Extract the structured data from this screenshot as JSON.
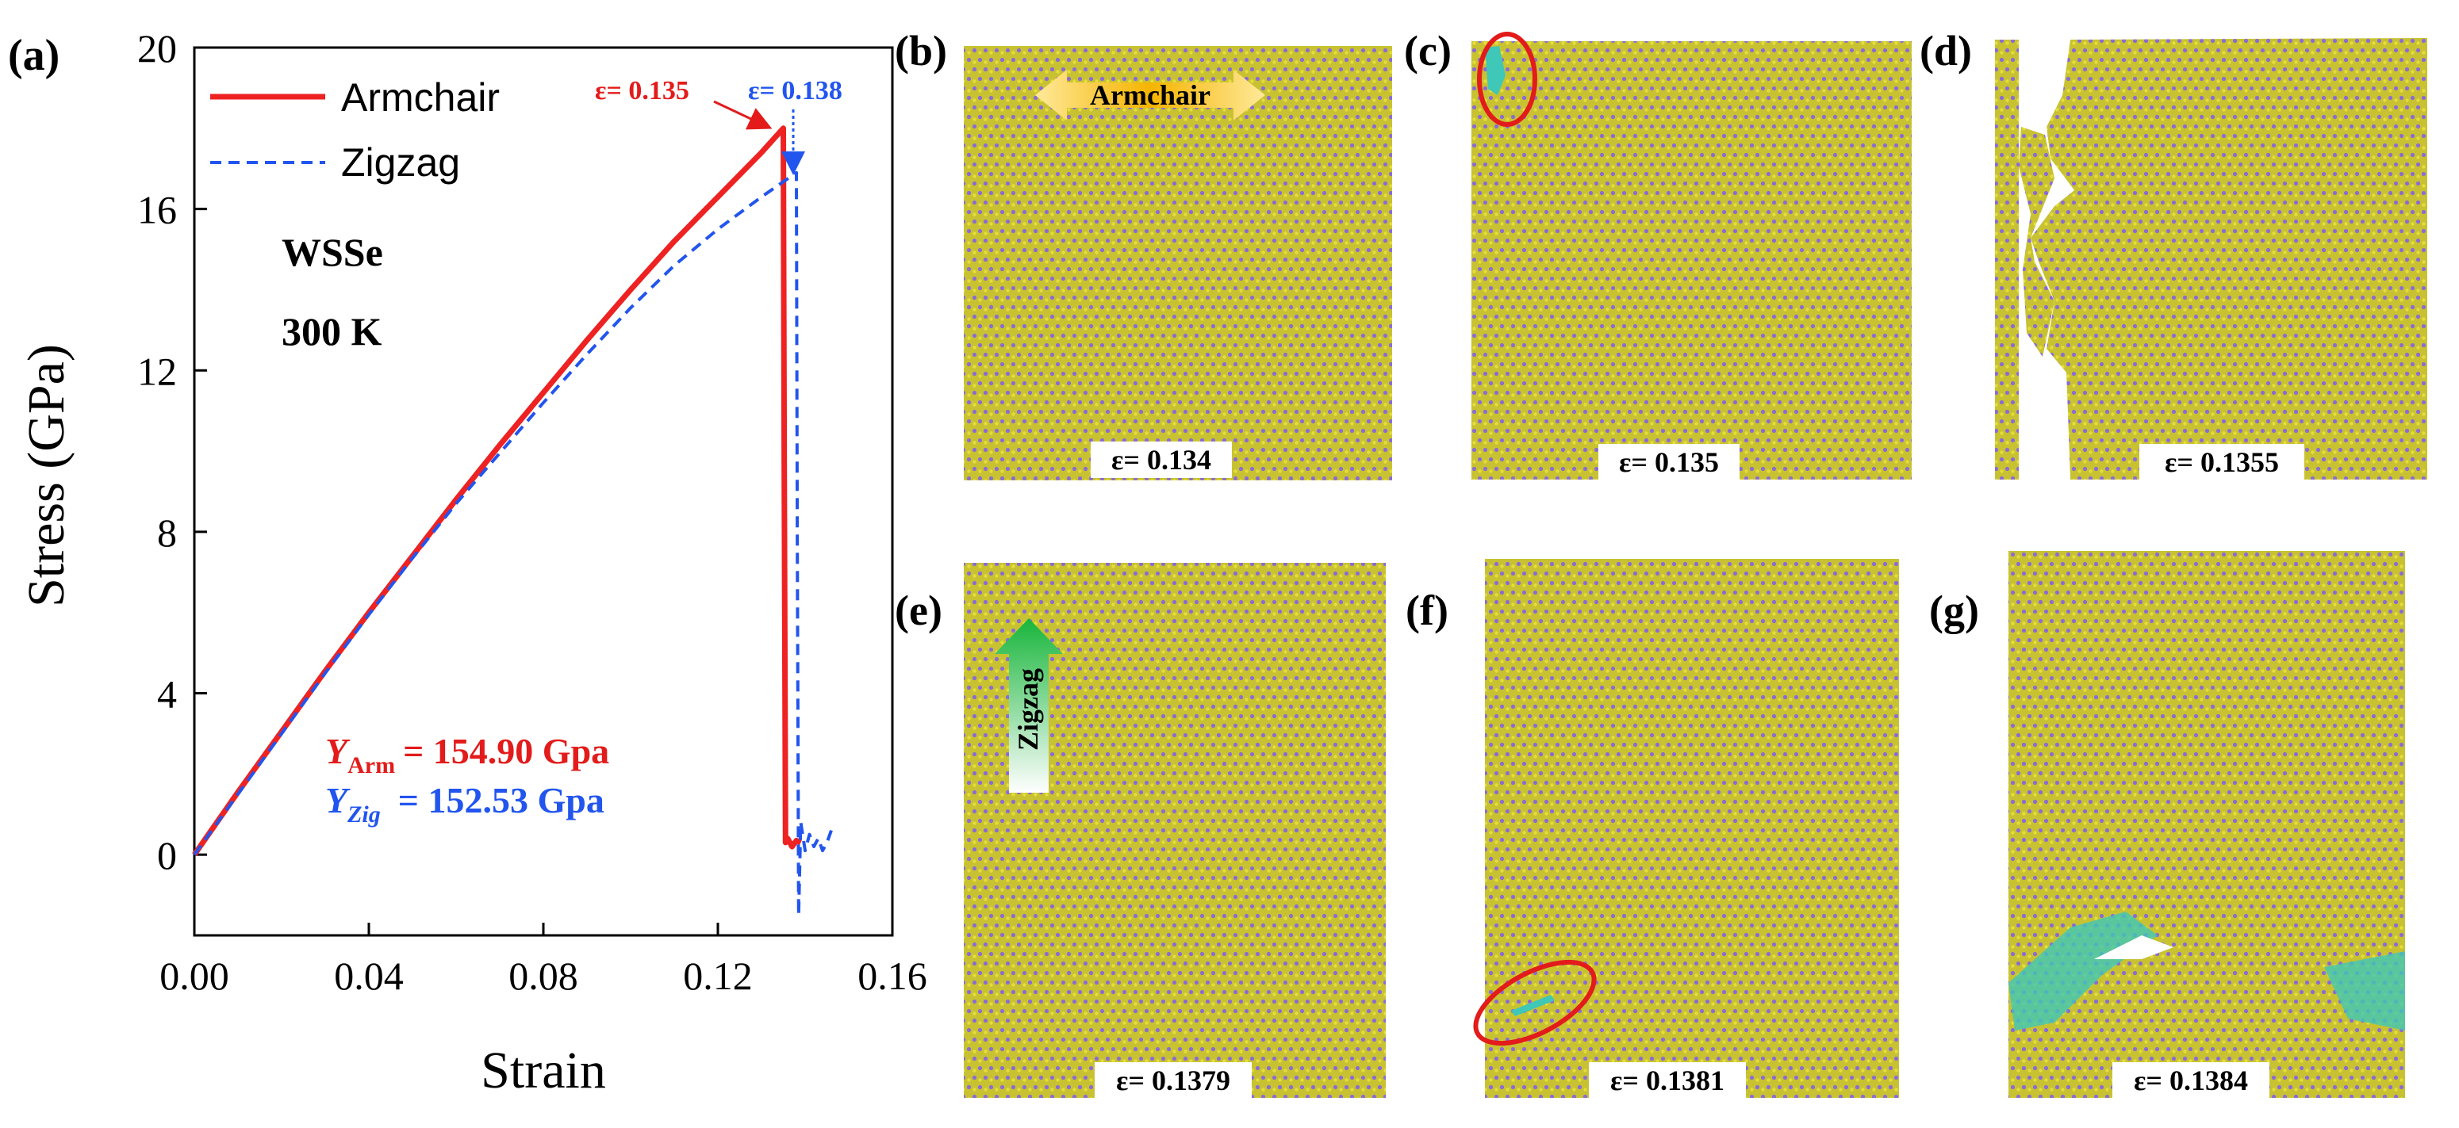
{
  "chart_data": {
    "type": "line",
    "panel_label": "(a)",
    "xlabel": "Strain",
    "ylabel": "Stress (GPa)",
    "xlim": [
      0,
      0.16
    ],
    "ylim": [
      -2,
      20
    ],
    "x_ticks": [
      "0.00",
      "0.04",
      "0.08",
      "0.12",
      "0.16"
    ],
    "y_ticks": [
      "0",
      "4",
      "8",
      "12",
      "16",
      "20"
    ],
    "material_label": "WSSe",
    "temperature_label": "300 K",
    "series": [
      {
        "name": "Armchair",
        "color": "#ee2222",
        "style": "solid",
        "x": [
          0.0,
          0.01,
          0.02,
          0.03,
          0.04,
          0.05,
          0.06,
          0.07,
          0.08,
          0.09,
          0.1,
          0.11,
          0.12,
          0.13,
          0.135,
          0.1352,
          0.1355,
          0.136,
          0.137,
          0.138,
          0.139
        ],
        "y": [
          0.0,
          1.55,
          3.05,
          4.55,
          6.0,
          7.4,
          8.8,
          10.15,
          11.45,
          12.75,
          14.0,
          15.2,
          16.3,
          17.4,
          18.0,
          10.0,
          0.3,
          0.4,
          0.2,
          0.35,
          0.3
        ]
      },
      {
        "name": "Zigzag",
        "color": "#2255ee",
        "style": "dashed",
        "x": [
          0.0,
          0.01,
          0.02,
          0.03,
          0.04,
          0.05,
          0.06,
          0.07,
          0.08,
          0.09,
          0.1,
          0.11,
          0.12,
          0.13,
          0.138,
          0.1382,
          0.1385,
          0.139,
          0.14,
          0.141,
          0.142,
          0.143,
          0.144,
          0.145,
          0.146
        ],
        "y": [
          0.0,
          1.5,
          3.0,
          4.5,
          5.95,
          7.35,
          8.7,
          9.95,
          11.2,
          12.4,
          13.55,
          14.6,
          15.5,
          16.3,
          16.9,
          8.0,
          -1.5,
          0.8,
          0.1,
          0.5,
          0.2,
          0.4,
          0.1,
          0.3,
          0.6
        ]
      }
    ],
    "annotations": {
      "arm_fracture": "ε= 0.135",
      "zig_fracture": "ε= 0.138",
      "y_arm_symbol": "Y",
      "y_arm_sub": "Arm",
      "y_arm_value": "= 154.90 Gpa",
      "y_zig_symbol": "Y",
      "y_zig_sub": "Zig",
      "y_zig_value": "= 152.53 Gpa"
    }
  },
  "snapshots": [
    {
      "label": "(b)",
      "strain": "ε= 0.134",
      "direction": "Armchair"
    },
    {
      "label": "(c)",
      "strain": "ε= 0.135"
    },
    {
      "label": "(d)",
      "strain": "ε= 0.1355"
    },
    {
      "label": "(e)",
      "strain": "ε= 0.1379",
      "direction": "Zigzag"
    },
    {
      "label": "(f)",
      "strain": "ε= 0.1381"
    },
    {
      "label": "(g)",
      "strain": "ε= 0.1384"
    }
  ],
  "colors": {
    "atom_yellow": "#c8c232",
    "atom_purple": "#8a6bd6",
    "defect_cyan": "#3fc7b8",
    "highlight_red": "#e31b1b"
  }
}
